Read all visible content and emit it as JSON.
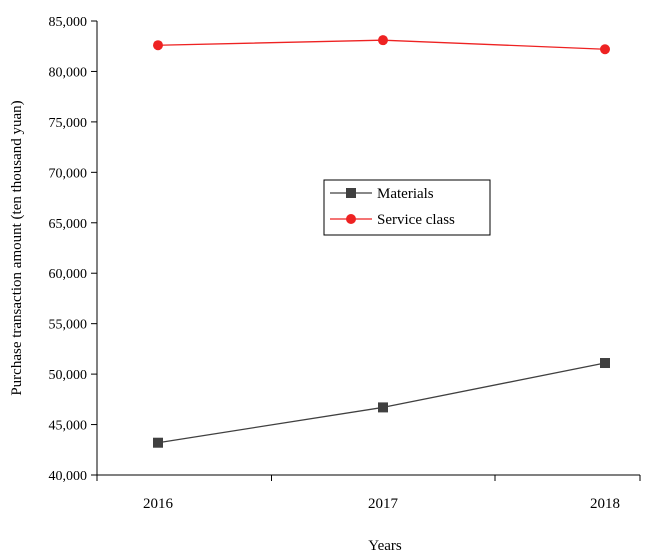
{
  "chart_data": {
    "type": "line",
    "title": "",
    "xlabel": "Years",
    "ylabel": "Purchase transaction amount (ten thousand yuan)",
    "categories": [
      "2016",
      "2017",
      "2018"
    ],
    "ylim": [
      40000,
      85000
    ],
    "yticks": [
      40000,
      45000,
      50000,
      55000,
      60000,
      65000,
      70000,
      75000,
      80000,
      85000
    ],
    "ytick_labels": [
      "40,000",
      "45,000",
      "50,000",
      "55,000",
      "60,000",
      "65,000",
      "70,000",
      "75,000",
      "80,000",
      "85,000"
    ],
    "grid": false,
    "legend_position": "center-right",
    "series": [
      {
        "name": "Materials",
        "values": [
          43200,
          46700,
          51100
        ],
        "color": "#404040",
        "marker": "square"
      },
      {
        "name": "Service class",
        "values": [
          82600,
          83100,
          82200
        ],
        "color": "#ee2222",
        "marker": "circle"
      }
    ]
  }
}
